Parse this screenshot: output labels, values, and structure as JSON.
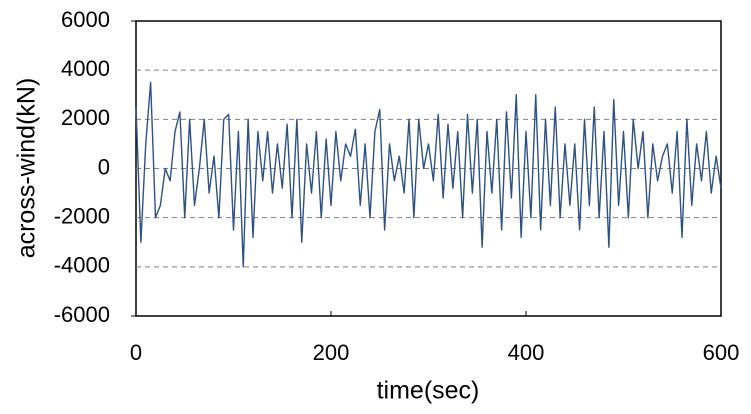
{
  "chart_data": {
    "type": "line",
    "x_label": "time(sec)",
    "y_label": "across-wind(kN)",
    "x": [
      0,
      5,
      10,
      15,
      20,
      25,
      30,
      35,
      40,
      45,
      50,
      55,
      60,
      65,
      70,
      75,
      80,
      85,
      90,
      95,
      100,
      105,
      110,
      115,
      120,
      125,
      130,
      135,
      140,
      145,
      150,
      155,
      160,
      165,
      170,
      175,
      180,
      185,
      190,
      195,
      200,
      205,
      210,
      215,
      220,
      225,
      230,
      235,
      240,
      245,
      250,
      255,
      260,
      265,
      270,
      275,
      280,
      285,
      290,
      295,
      300,
      305,
      310,
      315,
      320,
      325,
      330,
      335,
      340,
      345,
      350,
      355,
      360,
      365,
      370,
      375,
      380,
      385,
      390,
      395,
      400,
      405,
      410,
      415,
      420,
      425,
      430,
      435,
      440,
      445,
      450,
      455,
      460,
      465,
      470,
      475,
      480,
      485,
      490,
      495,
      500,
      505,
      510,
      515,
      520,
      525,
      530,
      535,
      540,
      545,
      550,
      555,
      560,
      565,
      570,
      575,
      580,
      585,
      590,
      595,
      600
    ],
    "series": [
      {
        "name": "across-wind",
        "color": "#2e5184",
        "values": [
          2500,
          -3000,
          1000,
          3500,
          -2000,
          -1500,
          0,
          -500,
          1500,
          2300,
          -2000,
          2000,
          -1500,
          0,
          2000,
          -1000,
          500,
          -2000,
          2000,
          2200,
          -2500,
          1500,
          -4000,
          2000,
          -2800,
          1500,
          -500,
          1500,
          -1000,
          1000,
          -800,
          1800,
          -2000,
          2000,
          -3000,
          1000,
          -1000,
          1500,
          -2000,
          1200,
          -1500,
          1500,
          -500,
          1000,
          500,
          1600,
          -1500,
          1000,
          -2000,
          1500,
          2400,
          -2500,
          1000,
          -500,
          500,
          -1000,
          2000,
          -2000,
          2000,
          0,
          1000,
          -500,
          2200,
          -1200,
          1800,
          -800,
          1500,
          -2000,
          2200,
          -1000,
          2000,
          -3200,
          1500,
          -1000,
          2000,
          -2500,
          2300,
          -1200,
          3000,
          -2800,
          1500,
          -2000,
          3000,
          -2500,
          2000,
          -1500,
          2500,
          -2000,
          1000,
          -1500,
          1000,
          -2500,
          2000,
          -1500,
          2500,
          -2000,
          1500,
          -3200,
          2800,
          -1500,
          1500,
          -2000,
          2000,
          0,
          1500,
          -2000,
          1000,
          -500,
          500,
          1000,
          -1000,
          1500,
          -2800,
          2000,
          -1500,
          1000,
          -500,
          1500,
          -1000,
          500,
          -800
        ]
      }
    ],
    "xlim": [
      0,
      600
    ],
    "xticks": [
      0,
      200,
      400,
      600
    ],
    "ylim": [
      -6000,
      6000
    ],
    "yticks": [
      -6000,
      -4000,
      -2000,
      0,
      2000,
      4000,
      6000
    ],
    "grid": true
  }
}
